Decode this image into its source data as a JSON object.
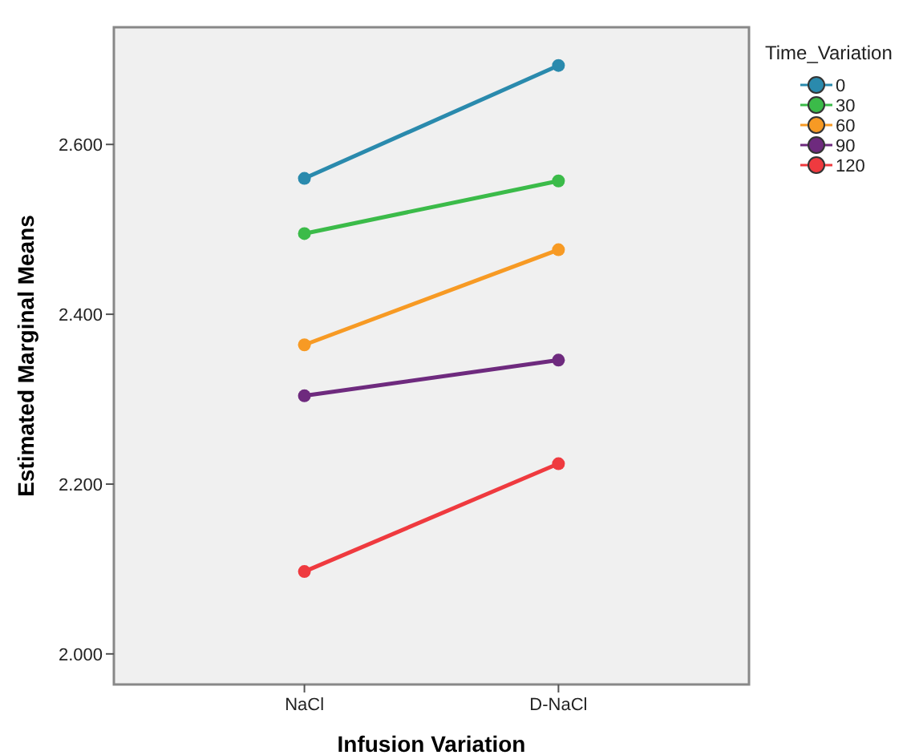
{
  "chart_data": {
    "type": "line",
    "xlabel": "Infusion  Variation",
    "ylabel": "Estimated Marginal Means",
    "legend_title": "Time_Variation",
    "legend": "right",
    "marker": "circle",
    "grid": false,
    "categories": [
      "NaCl",
      "D-NaCl"
    ],
    "ylim": [
      1.964,
      2.738
    ],
    "yticks": [
      {
        "value": 2.0,
        "label": "2.000"
      },
      {
        "value": 2.2,
        "label": "2.200"
      },
      {
        "value": 2.4,
        "label": "2.400"
      },
      {
        "value": 2.6,
        "label": "2.600"
      }
    ],
    "series": [
      {
        "name": "0",
        "color": "#2a8aad",
        "values": [
          2.56,
          2.693
        ]
      },
      {
        "name": "30",
        "color": "#3bbb49",
        "values": [
          2.495,
          2.557
        ]
      },
      {
        "name": "60",
        "color": "#f79a24",
        "values": [
          2.364,
          2.476
        ]
      },
      {
        "name": "90",
        "color": "#6e2a7e",
        "values": [
          2.304,
          2.346
        ]
      },
      {
        "name": "120",
        "color": "#ef3a3f",
        "values": [
          2.097,
          2.224
        ]
      }
    ]
  }
}
